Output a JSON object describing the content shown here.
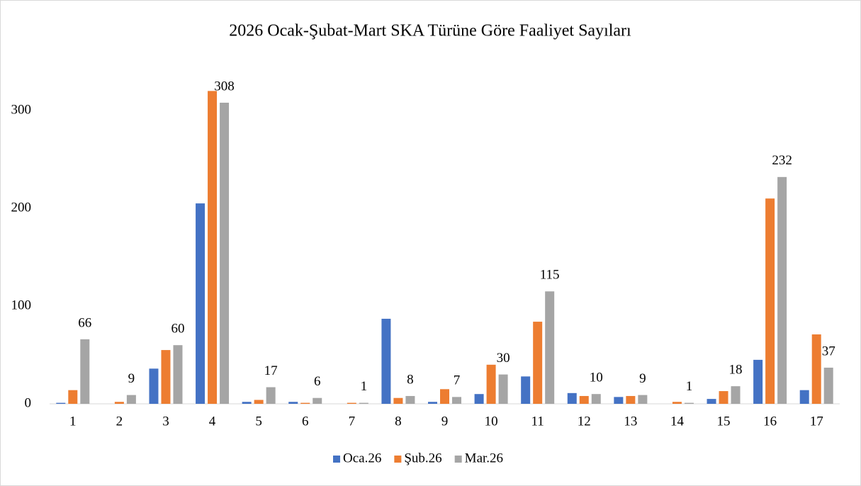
{
  "chart_data": {
    "type": "bar",
    "title": "2026 Ocak-Şubat-Mart SKA Türüne Göre Faaliyet Sayıları",
    "categories": [
      "1",
      "2",
      "3",
      "4",
      "5",
      "6",
      "7",
      "8",
      "9",
      "10",
      "11",
      "12",
      "13",
      "14",
      "15",
      "16",
      "17"
    ],
    "series": [
      {
        "name": "Oca.26",
        "color": "#4472c4",
        "values": [
          1,
          0,
          36,
          205,
          2,
          2,
          0,
          87,
          2,
          10,
          28,
          11,
          7,
          0,
          5,
          45,
          14
        ]
      },
      {
        "name": "Şub.26",
        "color": "#ed7d31",
        "values": [
          14,
          2,
          55,
          320,
          4,
          1,
          1,
          6,
          15,
          40,
          84,
          8,
          8,
          2,
          13,
          210,
          71
        ]
      },
      {
        "name": "Mar.26",
        "color": "#a5a5a5",
        "values": [
          66,
          9,
          60,
          308,
          17,
          6,
          1,
          8,
          7,
          30,
          115,
          10,
          9,
          1,
          18,
          232,
          37
        ],
        "data_labels": true
      }
    ],
    "ylim": [
      0,
      350
    ],
    "yticks": [
      0,
      100,
      200,
      300
    ],
    "grid": false,
    "legend": "bottom"
  }
}
